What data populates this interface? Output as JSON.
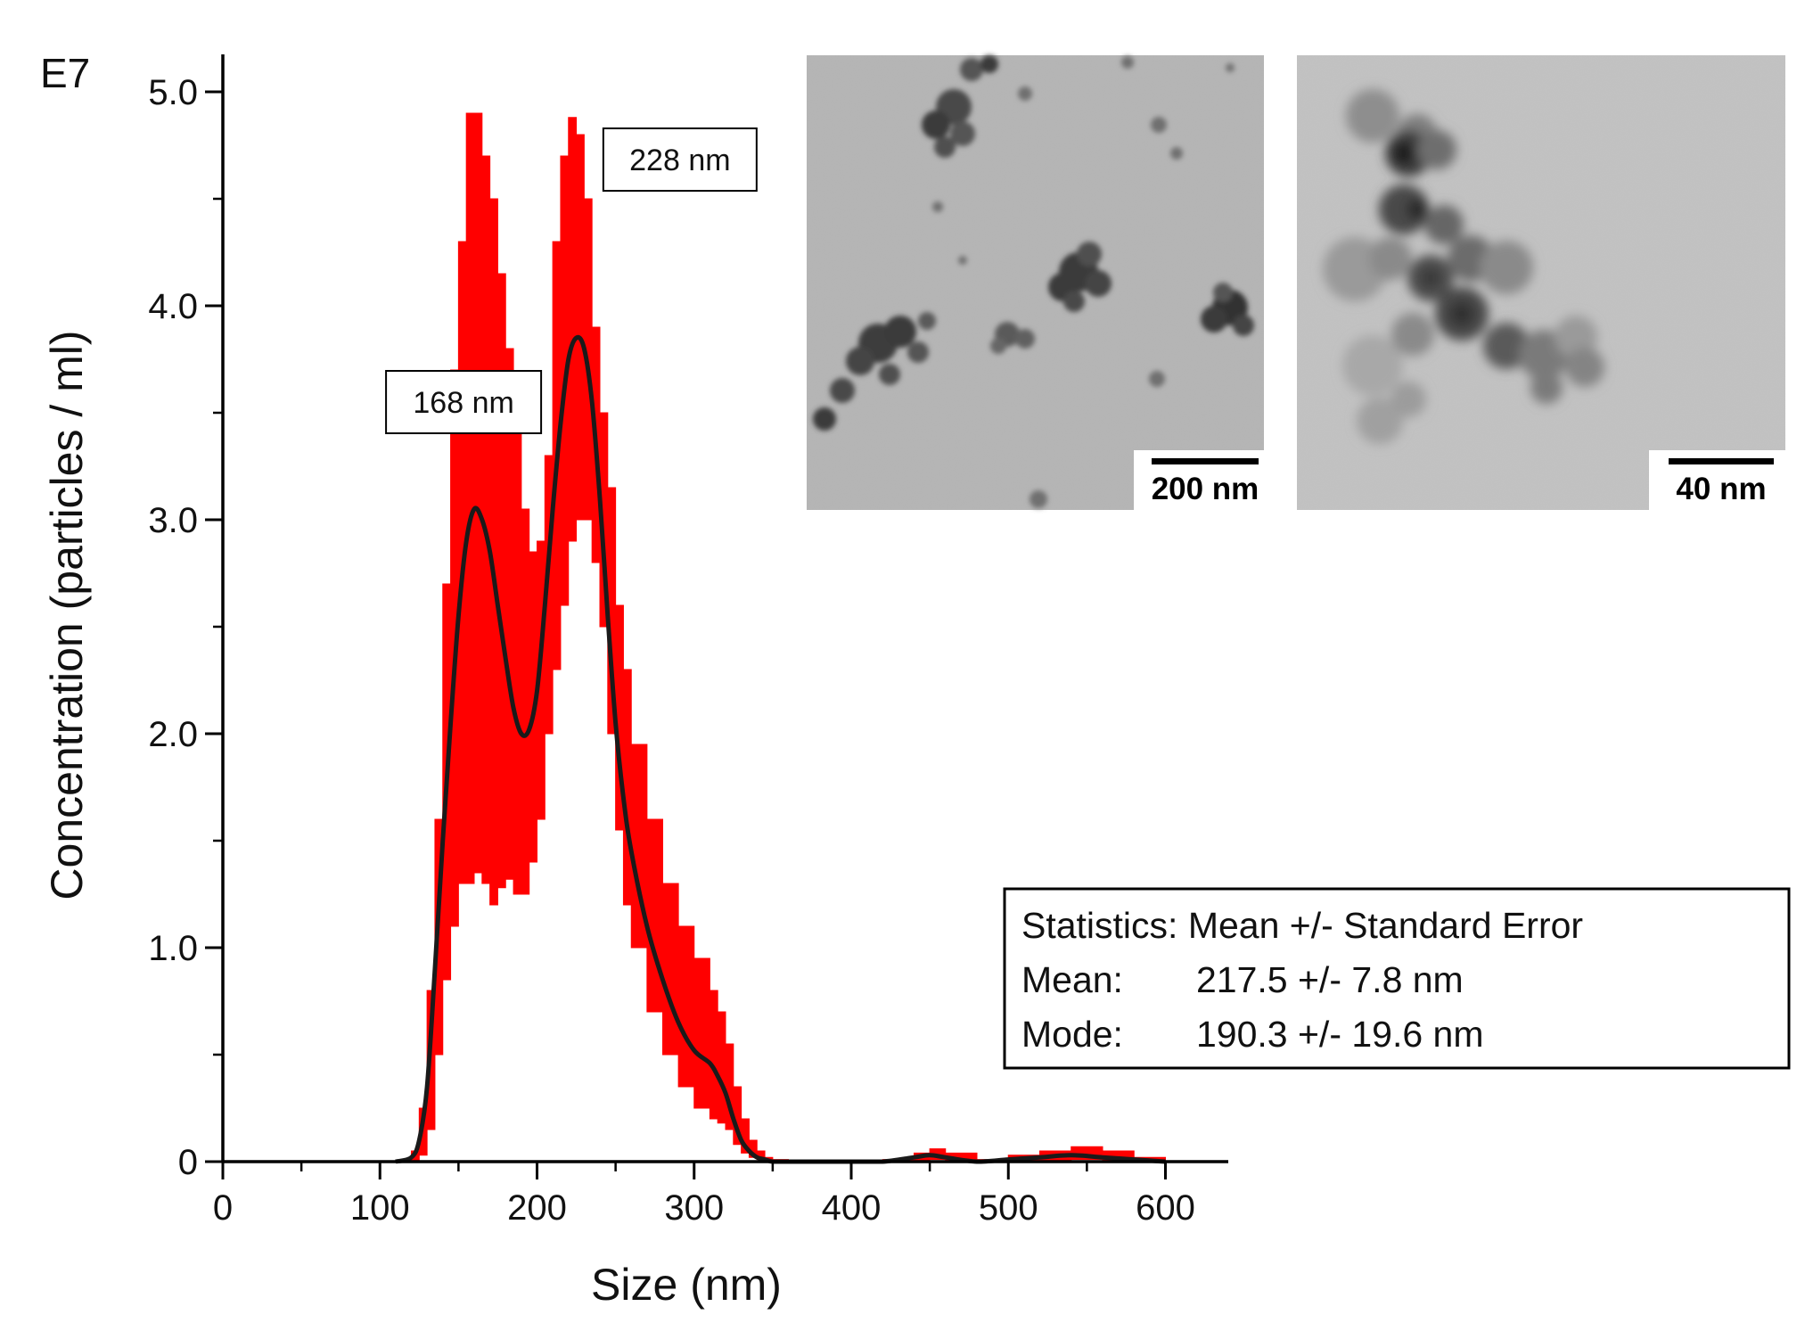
{
  "panel_label": "E7",
  "chart_data": {
    "type": "area",
    "xlabel": "Size (nm)",
    "ylabel": "Concentration (particles / ml)",
    "xlim": [
      0,
      640
    ],
    "ylim": [
      0,
      5.0
    ],
    "x_ticks": [
      0,
      100,
      200,
      300,
      400,
      500,
      600
    ],
    "y_ticks": [
      0,
      1.0,
      2.0,
      3.0,
      4.0,
      5.0
    ],
    "y_tick_labels": [
      "0",
      "1.0",
      "2.0",
      "3.0",
      "4.0",
      "5.0"
    ],
    "grid": false,
    "colors": {
      "error_band": "#ff0000",
      "mean_line": "#1a1a1a"
    },
    "series": [
      {
        "role": "mean",
        "x": [
          110,
          120,
          125,
          130,
          135,
          140,
          145,
          150,
          155,
          160,
          165,
          170,
          175,
          180,
          185,
          190,
          195,
          200,
          205,
          210,
          215,
          220,
          225,
          230,
          235,
          240,
          245,
          250,
          255,
          260,
          270,
          280,
          290,
          300,
          310,
          315,
          320,
          325,
          330,
          335,
          340,
          345,
          350,
          360,
          400,
          420,
          440,
          450,
          460,
          480,
          500,
          520,
          540,
          560,
          580,
          600
        ],
        "y": [
          0,
          0.02,
          0.1,
          0.35,
          0.9,
          1.5,
          2.05,
          2.55,
          2.9,
          3.05,
          3.0,
          2.85,
          2.6,
          2.35,
          2.12,
          2.0,
          2.02,
          2.2,
          2.6,
          3.05,
          3.45,
          3.75,
          3.85,
          3.8,
          3.55,
          3.1,
          2.55,
          2.05,
          1.7,
          1.45,
          1.1,
          0.85,
          0.65,
          0.52,
          0.46,
          0.4,
          0.32,
          0.2,
          0.1,
          0.05,
          0.02,
          0.01,
          0,
          0,
          0,
          0,
          0.02,
          0.03,
          0.02,
          0,
          0.01,
          0.02,
          0.03,
          0.02,
          0.01,
          0
        ]
      },
      {
        "role": "upper",
        "x": [
          110,
          120,
          125,
          130,
          135,
          140,
          145,
          150,
          155,
          160,
          165,
          170,
          175,
          180,
          185,
          190,
          195,
          200,
          205,
          210,
          215,
          220,
          225,
          230,
          235,
          240,
          245,
          250,
          255,
          260,
          270,
          280,
          290,
          300,
          310,
          315,
          320,
          325,
          330,
          335,
          340,
          345,
          350,
          360,
          400,
          420,
          440,
          450,
          460,
          480,
          500,
          520,
          540,
          560,
          580,
          600
        ],
        "y": [
          0,
          0.05,
          0.25,
          0.8,
          1.6,
          2.7,
          3.7,
          4.3,
          4.9,
          4.9,
          4.7,
          4.5,
          4.15,
          3.8,
          3.5,
          3.05,
          2.85,
          2.9,
          3.3,
          4.3,
          4.7,
          4.88,
          4.8,
          4.5,
          3.9,
          3.5,
          3.15,
          2.6,
          2.3,
          1.95,
          1.6,
          1.3,
          1.1,
          0.95,
          0.8,
          0.7,
          0.55,
          0.35,
          0.2,
          0.1,
          0.05,
          0.02,
          0.01,
          0,
          0,
          0.01,
          0.04,
          0.06,
          0.04,
          0.01,
          0.03,
          0.05,
          0.07,
          0.05,
          0.02,
          0
        ]
      },
      {
        "role": "lower",
        "x": [
          110,
          120,
          125,
          130,
          135,
          140,
          145,
          150,
          155,
          160,
          165,
          170,
          175,
          180,
          185,
          190,
          195,
          200,
          205,
          210,
          215,
          220,
          225,
          230,
          235,
          240,
          245,
          250,
          255,
          260,
          270,
          280,
          290,
          300,
          310,
          315,
          320,
          325,
          330,
          335,
          340,
          345,
          350,
          360,
          400,
          420,
          440,
          450,
          460,
          480,
          500,
          520,
          540,
          560,
          580,
          600
        ],
        "y": [
          0,
          0,
          0.03,
          0.15,
          0.5,
          0.85,
          1.1,
          1.3,
          1.3,
          1.35,
          1.3,
          1.2,
          1.28,
          1.32,
          1.25,
          1.25,
          1.4,
          1.6,
          2.0,
          2.3,
          2.6,
          2.9,
          3.0,
          3.0,
          2.8,
          2.5,
          2.0,
          1.55,
          1.2,
          1.0,
          0.7,
          0.5,
          0.35,
          0.25,
          0.2,
          0.18,
          0.15,
          0.08,
          0.04,
          0.02,
          0.01,
          0,
          0,
          0,
          0,
          0,
          0,
          0.01,
          0,
          0,
          0,
          0,
          0.01,
          0,
          0,
          0
        ]
      }
    ],
    "annotations": [
      {
        "text": "168 nm",
        "x": 168,
        "y": 3.05
      },
      {
        "text": "228 nm",
        "x": 228,
        "y": 3.85
      }
    ],
    "stats_box": {
      "line1": "Statistics: Mean +/- Standard Error",
      "mean_label": "Mean:",
      "mean_value": "217.5 +/- 7.8 nm",
      "mode_label": "Mode:",
      "mode_value": "190.3 +/- 19.6 nm"
    }
  },
  "tem_images": {
    "left_scale_bar": "200 nm",
    "right_scale_bar": "40 nm"
  }
}
